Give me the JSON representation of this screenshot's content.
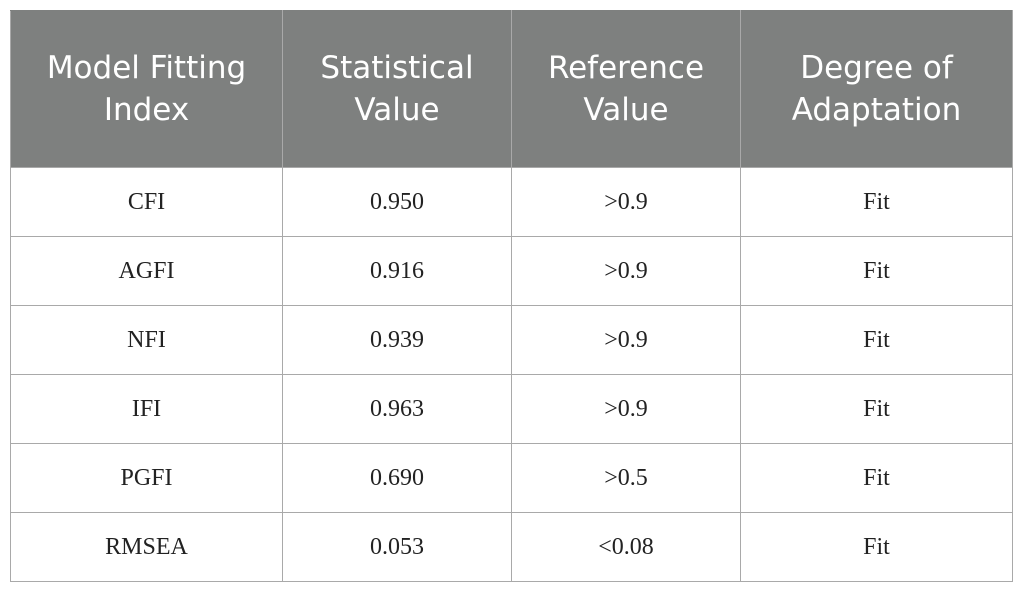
{
  "table": {
    "headers": [
      "Model Fitting Index",
      "Statistical Value",
      "Reference Value",
      "Degree of Adaptation"
    ],
    "rows": [
      [
        "CFI",
        "0.950",
        ">0.9",
        "Fit"
      ],
      [
        "AGFI",
        "0.916",
        ">0.9",
        "Fit"
      ],
      [
        "NFI",
        "0.939",
        ">0.9",
        "Fit"
      ],
      [
        "IFI",
        "0.963",
        ">0.9",
        "Fit"
      ],
      [
        "PGFI",
        "0.690",
        ">0.5",
        "Fit"
      ],
      [
        "RMSEA",
        "0.053",
        "<0.08",
        "Fit"
      ]
    ]
  },
  "colors": {
    "header_background": "#7e807f",
    "header_text": "#ffffff",
    "grid_line": "#a9a9a9"
  }
}
